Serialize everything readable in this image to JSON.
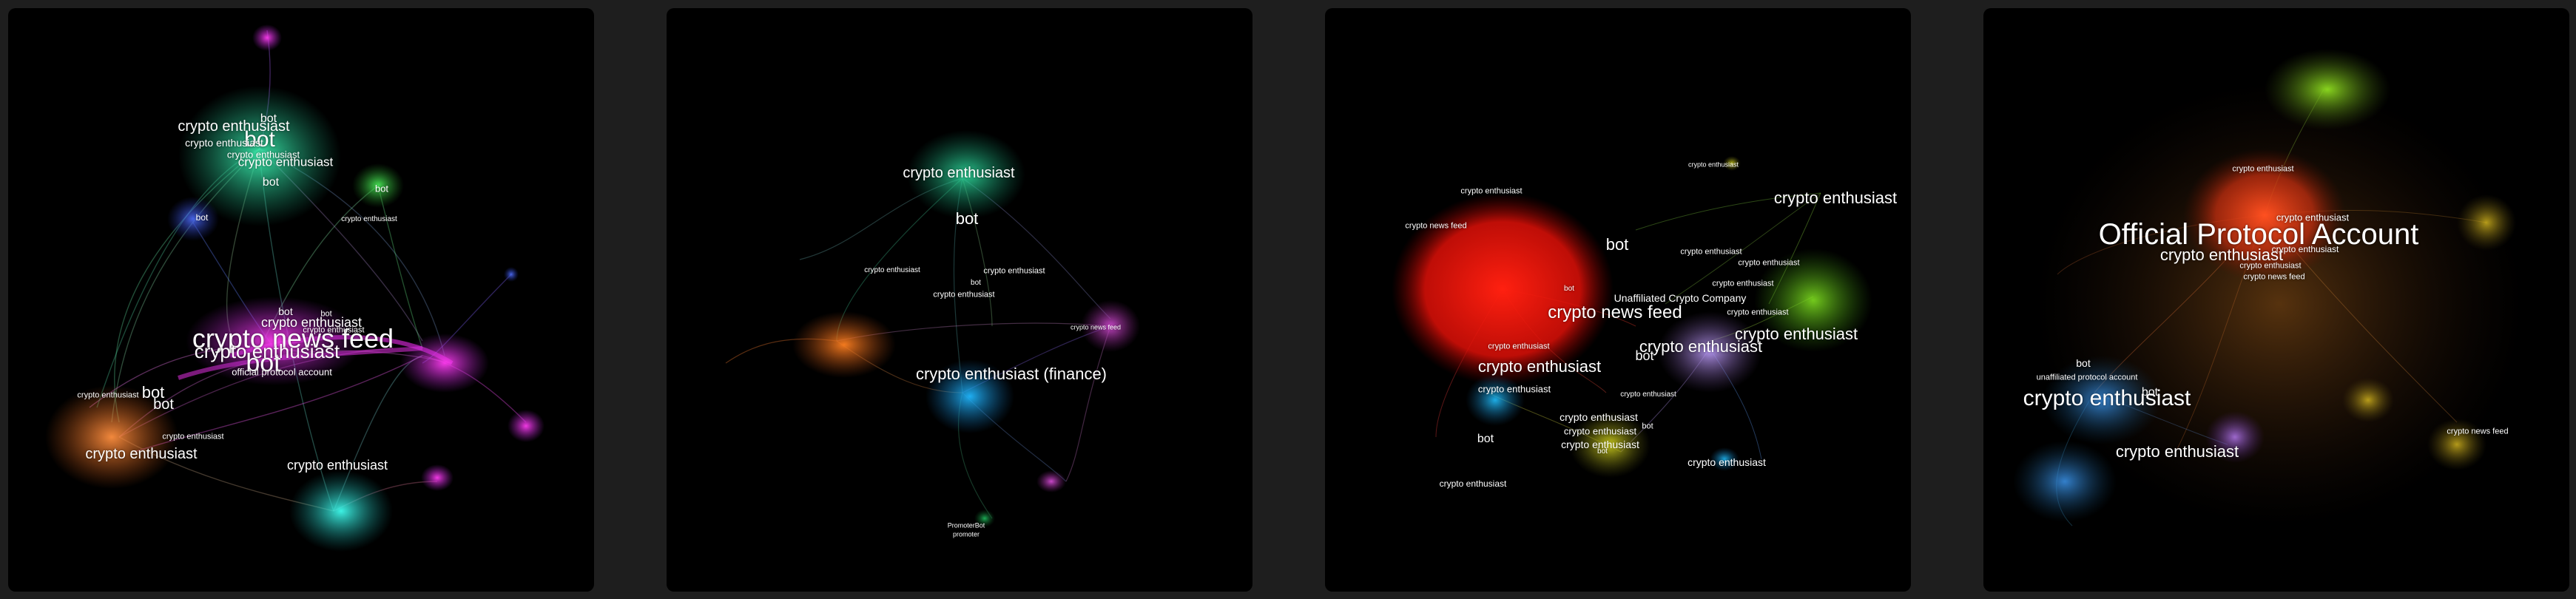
{
  "panels": [
    {
      "name": "network-panel-1",
      "labels": [
        {
          "text": "crypto news feed"
        },
        {
          "text": "bot"
        },
        {
          "text": "crypto enthusiast"
        },
        {
          "text": "crypto enthusiast"
        },
        {
          "text": "crypto enthusiast"
        },
        {
          "text": "bot"
        },
        {
          "text": "crypto enthusiast"
        },
        {
          "text": "bot"
        },
        {
          "text": "crypto enthusiast"
        },
        {
          "text": "bot"
        },
        {
          "text": "crypto enthusiast"
        },
        {
          "text": "bot"
        },
        {
          "text": "bot"
        },
        {
          "text": "crypto enthusiast"
        },
        {
          "text": "official protocol account"
        },
        {
          "text": "crypto enthusiast"
        },
        {
          "text": "bot"
        },
        {
          "text": "crypto enthusiast"
        },
        {
          "text": "bot"
        },
        {
          "text": "crypto enthusiast"
        },
        {
          "text": "crypto enthusiast"
        },
        {
          "text": "bot"
        },
        {
          "text": "crypto enthusiast"
        },
        {
          "text": "bot"
        }
      ]
    },
    {
      "name": "network-panel-2",
      "labels": [
        {
          "text": "crypto enthusiast"
        },
        {
          "text": "crypto enthusiast"
        },
        {
          "text": "bot"
        },
        {
          "text": "crypto enthusiast (finance)"
        },
        {
          "text": "crypto enthusiast"
        },
        {
          "text": "crypto enthusiast"
        },
        {
          "text": "bot"
        },
        {
          "text": "crypto news feed"
        },
        {
          "text": "PromoterBot"
        },
        {
          "text": "promoter"
        }
      ]
    },
    {
      "name": "network-panel-3",
      "labels": [
        {
          "text": "crypto enthusiast"
        },
        {
          "text": "crypto news feed"
        },
        {
          "text": "bot"
        },
        {
          "text": "crypto enthusiast"
        },
        {
          "text": "bot"
        },
        {
          "text": "Unaffiliated Crypto Company"
        },
        {
          "text": "crypto news feed"
        },
        {
          "text": "crypto enthusiast"
        },
        {
          "text": "bot"
        },
        {
          "text": "crypto enthusiast"
        },
        {
          "text": "crypto enthusiast"
        },
        {
          "text": "crypto enthusiast"
        },
        {
          "text": "crypto enthusiast"
        },
        {
          "text": "crypto enthusiast"
        },
        {
          "text": "crypto enthusiast"
        },
        {
          "text": "crypto enthusiast"
        },
        {
          "text": "crypto enthusiast"
        },
        {
          "text": "crypto enthusiast"
        },
        {
          "text": "crypto enthusiast"
        },
        {
          "text": "bot"
        },
        {
          "text": "crypto enthusiast"
        },
        {
          "text": "bot"
        },
        {
          "text": "crypto enthusiast"
        },
        {
          "text": "crypto enthusiast"
        },
        {
          "text": "crypto enthusiast"
        },
        {
          "text": "bot"
        },
        {
          "text": "crypto enthusiast"
        }
      ]
    },
    {
      "name": "network-panel-4",
      "labels": [
        {
          "text": "Official Protocol Account"
        },
        {
          "text": "crypto enthusiast"
        },
        {
          "text": "crypto enthusiast"
        },
        {
          "text": "crypto enthusiast"
        },
        {
          "text": "crypto enthusiast"
        },
        {
          "text": "crypto enthusiast"
        },
        {
          "text": "crypto news feed"
        },
        {
          "text": "bot"
        },
        {
          "text": "bot"
        },
        {
          "text": "unaffiliated protocol account"
        },
        {
          "text": "crypto enthusiast"
        },
        {
          "text": "crypto enthusiast"
        },
        {
          "text": "crypto news feed"
        }
      ]
    }
  ],
  "colors": {
    "page_bg": "#1e1e1e",
    "panel_bg": "#000000",
    "label": "#ffffff"
  }
}
